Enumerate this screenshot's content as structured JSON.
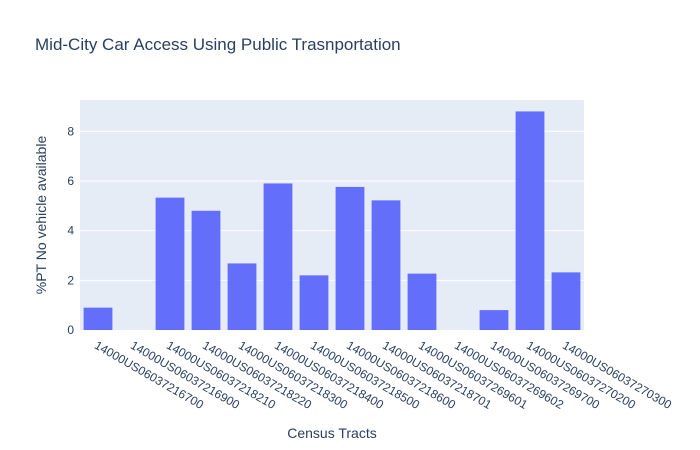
{
  "chart_data": {
    "type": "bar",
    "title": "Mid-City Car Access Using Public Trasnportation",
    "xlabel": "Census Tracts",
    "ylabel": "%PT No vehicle available",
    "categories": [
      "14000US06037216700",
      "14000US06037216900",
      "14000US06037218210",
      "14000US06037218220",
      "14000US06037218300",
      "14000US06037218400",
      "14000US06037218500",
      "14000US06037218600",
      "14000US06037218701",
      "14000US06037269601",
      "14000US06037269602",
      "14000US06037269700",
      "14000US06037270200",
      "14000US06037270300"
    ],
    "values": [
      0.9,
      0,
      5.33,
      4.8,
      2.68,
      5.9,
      2.2,
      5.76,
      5.22,
      2.27,
      0,
      0.8,
      8.8,
      2.32
    ],
    "ylim": [
      0,
      9.26
    ],
    "yticks": [
      0,
      2,
      4,
      6,
      8
    ],
    "grid": true,
    "colors": {
      "bar": "#636efa",
      "plot_background": "#e5ecf6",
      "grid": "#ffffff",
      "text": "#2a3f5f"
    }
  }
}
